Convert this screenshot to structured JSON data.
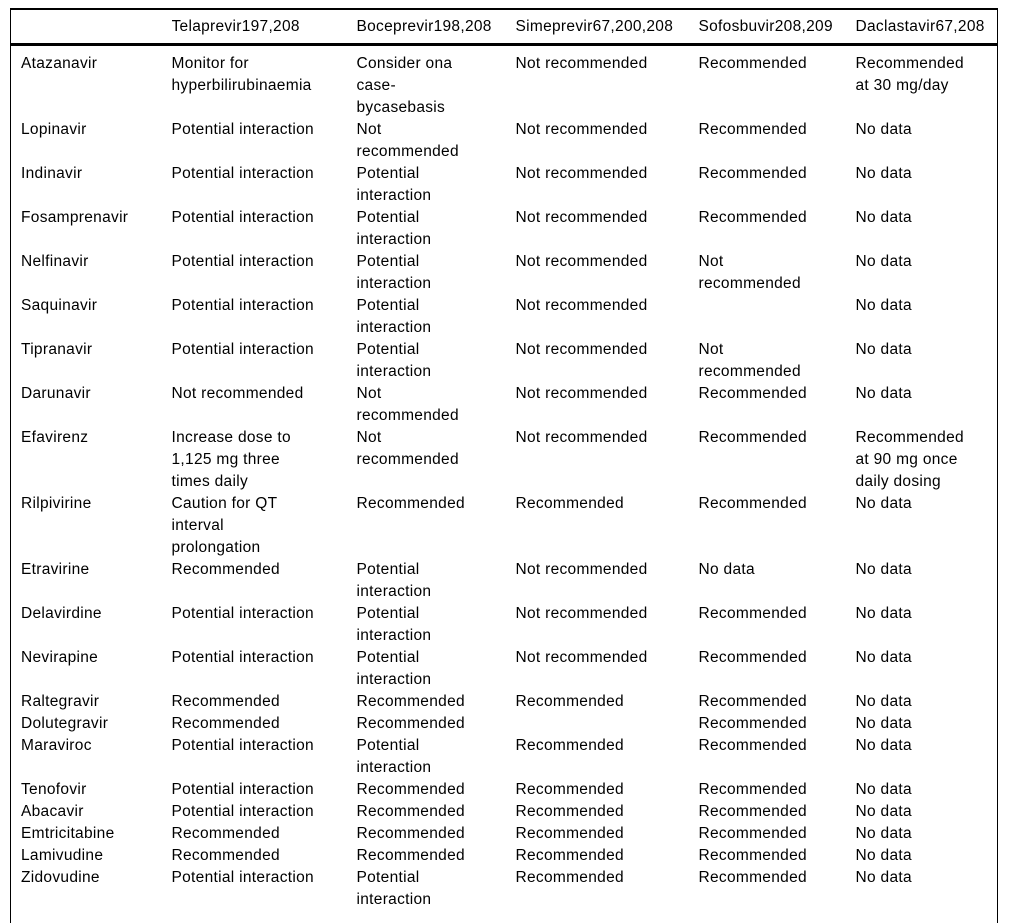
{
  "table": {
    "columns": [
      "",
      "Telaprevir197,208",
      "Boceprevir198,208",
      "Simeprevir67,200,208",
      "Sofosbuvir208,209",
      "Daclastavir67,208"
    ],
    "rows": [
      {
        "drug": "Atazanavir",
        "cells": [
          "Monitor for\nhyperbilirubinaemia",
          "Consider ona\ncase-\nbycasebasis",
          "Not recommended",
          "Recommended",
          "Recommended\nat 30 mg/day"
        ]
      },
      {
        "drug": "Lopinavir",
        "cells": [
          "Potential interaction",
          "Not\nrecommended",
          "Not recommended",
          "Recommended",
          "No data"
        ]
      },
      {
        "drug": "Indinavir",
        "cells": [
          "Potential interaction",
          "Potential\ninteraction",
          "Not recommended",
          "Recommended",
          "No data"
        ]
      },
      {
        "drug": "Fosamprenavir",
        "cells": [
          "Potential interaction",
          "Potential\ninteraction",
          "Not recommended",
          "Recommended",
          "No data"
        ]
      },
      {
        "drug": "Nelfinavir",
        "cells": [
          "Potential interaction",
          "Potential\ninteraction",
          "Not recommended",
          "Not\nrecommended",
          "No data"
        ]
      },
      {
        "drug": "Saquinavir",
        "cells": [
          "Potential interaction",
          "Potential\ninteraction",
          "Not recommended",
          "",
          "No data"
        ]
      },
      {
        "drug": "Tipranavir",
        "cells": [
          "Potential interaction",
          "Potential\ninteraction",
          "Not recommended",
          "Not\nrecommended",
          "No data"
        ]
      },
      {
        "drug": "Darunavir",
        "cells": [
          "Not recommended",
          "Not\nrecommended",
          "Not recommended",
          "Recommended",
          "No data"
        ]
      },
      {
        "drug": "Efavirenz",
        "cells": [
          "Increase dose to\n1,125 mg three\ntimes daily",
          "Not\nrecommended",
          "Not recommended",
          "Recommended",
          "Recommended\nat 90 mg once\ndaily dosing"
        ]
      },
      {
        "drug": "Rilpivirine",
        "cells": [
          "Caution for QT\ninterval\nprolongation",
          "Recommended",
          "Recommended",
          "Recommended",
          "No data"
        ]
      },
      {
        "drug": "Etravirine",
        "cells": [
          "Recommended",
          "Potential\ninteraction",
          "Not recommended",
          "No data",
          "No data"
        ]
      },
      {
        "drug": "Delavirdine",
        "cells": [
          "Potential interaction",
          "Potential\ninteraction",
          "Not recommended",
          "Recommended",
          "No data"
        ]
      },
      {
        "drug": "Nevirapine",
        "cells": [
          "Potential interaction",
          "Potential\ninteraction",
          "Not recommended",
          "Recommended",
          "No data"
        ]
      },
      {
        "drug": "Raltegravir",
        "cells": [
          "Recommended",
          "Recommended",
          "Recommended",
          "Recommended",
          "No data"
        ]
      },
      {
        "drug": "Dolutegravir",
        "cells": [
          "Recommended",
          "Recommended",
          "",
          "Recommended",
          "No data"
        ]
      },
      {
        "drug": "Maraviroc",
        "cells": [
          "Potential interaction",
          "Potential\ninteraction",
          "Recommended",
          "Recommended",
          "No data"
        ]
      },
      {
        "drug": "Tenofovir",
        "cells": [
          "Potential interaction",
          "Recommended",
          "Recommended",
          "Recommended",
          "No data"
        ]
      },
      {
        "drug": "Abacavir",
        "cells": [
          "Potential interaction",
          "Recommended",
          "Recommended",
          "Recommended",
          "No data"
        ]
      },
      {
        "drug": "Emtricitabine",
        "cells": [
          "Recommended",
          "Recommended",
          "Recommended",
          "Recommended",
          "No data"
        ]
      },
      {
        "drug": "Lamivudine",
        "cells": [
          "Recommended",
          "Recommended",
          "Recommended",
          "Recommended",
          "No data"
        ]
      },
      {
        "drug": "Zidovudine",
        "cells": [
          "Potential interaction",
          "Potential\ninteraction",
          "Recommended",
          "Recommended",
          "No data"
        ]
      }
    ]
  }
}
